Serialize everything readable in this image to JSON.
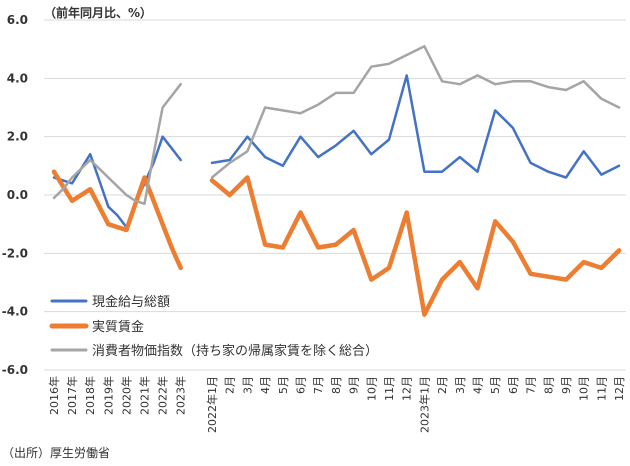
{
  "chart_data": {
    "type": "line",
    "title": "",
    "unit_label": "（前年同月比、%）",
    "source": "（出所）厚生労働省",
    "ylim": [
      -6.0,
      6.0
    ],
    "yticks": [
      "6.0",
      "4.0",
      "2.0",
      "0.0",
      "-2.0",
      "-4.0",
      "-6.0"
    ],
    "ytick_values": [
      6,
      4,
      2,
      0,
      -2,
      -4,
      -6
    ],
    "grid": true,
    "legend_position": "bottom-left",
    "segments": {
      "annual": {
        "categories": [
          "2016年",
          "2017年",
          "2018年",
          "2019年",
          "2020年",
          "2021年",
          "2022年",
          "2023年"
        ],
        "slot_hint": [
          0,
          1,
          2,
          3,
          4,
          5,
          6,
          7
        ],
        "sub_x": [
          0,
          0.5,
          1,
          1.5,
          2,
          2.5,
          3,
          3.5,
          4,
          4.5,
          5,
          5.5,
          6,
          6.5,
          7
        ]
      },
      "monthly": {
        "categories": [
          "2022年1月",
          "2月",
          "3月",
          "4月",
          "5月",
          "6月",
          "7月",
          "8月",
          "9月",
          "10月",
          "11月",
          "12月",
          "2023年1月",
          "2月",
          "3月",
          "4月",
          "5月",
          "6月",
          "7月",
          "8月",
          "9月",
          "10月",
          "11月",
          "12月"
        ]
      }
    },
    "series": [
      {
        "name": "現金給与総額",
        "color": "#4472C4",
        "annual_values": [
          0.6,
          0.4,
          1.4,
          -0.4,
          -1.1,
          0.4,
          2.0,
          1.2
        ],
        "annual_sub_values": [
          0.6,
          0.5,
          0.4,
          0.9,
          1.4,
          0.5,
          -0.4,
          -0.7,
          -1.1,
          -0.3,
          0.4,
          1.1,
          2.0,
          1.6,
          1.2
        ],
        "monthly_values": [
          1.1,
          1.2,
          2.0,
          1.3,
          1.0,
          2.0,
          1.3,
          1.7,
          2.2,
          1.4,
          1.9,
          4.1,
          0.8,
          0.8,
          1.3,
          0.8,
          2.9,
          2.3,
          1.1,
          0.8,
          0.6,
          1.5,
          0.7,
          1.0
        ]
      },
      {
        "name": "実質賃金",
        "color": "#ED7D31",
        "annual_values": [
          0.8,
          -0.2,
          0.2,
          -1.0,
          -1.2,
          0.6,
          -1.0,
          -2.5
        ],
        "annual_sub_values": [
          0.8,
          0.3,
          -0.2,
          0.0,
          0.2,
          -0.4,
          -1.0,
          -1.1,
          -1.2,
          -0.3,
          0.6,
          -0.2,
          -1.0,
          -1.8,
          -2.5
        ],
        "monthly_values": [
          0.5,
          0.0,
          0.6,
          -1.7,
          -1.8,
          -0.6,
          -1.8,
          -1.7,
          -1.2,
          -2.9,
          -2.5,
          -0.6,
          -4.1,
          -2.9,
          -2.3,
          -3.2,
          -0.9,
          -1.6,
          -2.7,
          -2.8,
          -2.9,
          -2.3,
          -2.5,
          -1.9
        ]
      },
      {
        "name": "消費者物価指数（持ち家の帰属家賃を除く総合）",
        "color": "#A5A5A5",
        "annual_values": [
          -0.1,
          0.6,
          1.2,
          0.6,
          0.0,
          -0.3,
          3.0,
          3.8
        ],
        "annual_sub_values": [
          -0.1,
          0.2,
          0.6,
          0.9,
          1.2,
          0.9,
          0.6,
          0.3,
          0.0,
          -0.2,
          -0.3,
          1.4,
          3.0,
          3.4,
          3.8
        ],
        "monthly_values": [
          0.6,
          1.1,
          1.5,
          3.0,
          2.9,
          2.8,
          3.1,
          3.5,
          3.5,
          4.4,
          4.5,
          4.8,
          5.1,
          3.9,
          3.8,
          4.1,
          3.8,
          3.9,
          3.9,
          3.7,
          3.6,
          3.9,
          3.3,
          3.0
        ]
      }
    ]
  }
}
